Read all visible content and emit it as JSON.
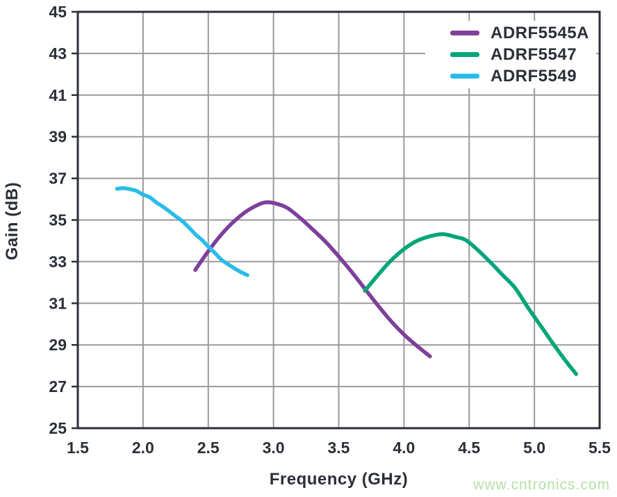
{
  "watermark": {
    "text": "www.cntronics.com",
    "color": "#b5dfa8"
  },
  "chart_data": {
    "type": "line",
    "title": "",
    "xlabel": "Frequency (GHz)",
    "ylabel": "Gain (dB)",
    "xlim": [
      1.5,
      5.5
    ],
    "ylim": [
      25,
      45
    ],
    "xticks": [
      1.5,
      2.0,
      2.5,
      3.0,
      3.5,
      4.0,
      4.5,
      5.0,
      5.5
    ],
    "xtick_labels": [
      "1.5",
      "2.0",
      "2.5",
      "3.0",
      "3.5",
      "4.0",
      "4.5",
      "5.0",
      "5.5"
    ],
    "yticks": [
      25,
      27,
      29,
      31,
      33,
      35,
      37,
      39,
      41,
      43,
      45
    ],
    "ytick_labels": [
      "25",
      "27",
      "29",
      "31",
      "33",
      "35",
      "37",
      "39",
      "41",
      "43",
      "45"
    ],
    "grid": true,
    "legend_position": "top-right",
    "colors": {
      "grid": "#9a9a9a",
      "frame": "#2b2f38",
      "text": "#2b2f38",
      "background": "#ffffff"
    },
    "series": [
      {
        "name": "ADRF5545A",
        "color": "#7e3f9b",
        "points": [
          [
            2.4,
            32.6
          ],
          [
            2.5,
            33.5
          ],
          [
            2.6,
            34.3
          ],
          [
            2.7,
            34.95
          ],
          [
            2.8,
            35.45
          ],
          [
            2.9,
            35.78
          ],
          [
            2.95,
            35.85
          ],
          [
            3.0,
            35.82
          ],
          [
            3.1,
            35.6
          ],
          [
            3.2,
            35.12
          ],
          [
            3.3,
            34.55
          ],
          [
            3.4,
            33.95
          ],
          [
            3.5,
            33.25
          ],
          [
            3.6,
            32.5
          ],
          [
            3.7,
            31.7
          ],
          [
            3.8,
            30.9
          ],
          [
            3.9,
            30.15
          ],
          [
            4.0,
            29.5
          ],
          [
            4.1,
            28.95
          ],
          [
            4.2,
            28.45
          ]
        ]
      },
      {
        "name": "ADRF5547",
        "color": "#00a678",
        "points": [
          [
            3.7,
            31.6
          ],
          [
            3.8,
            32.35
          ],
          [
            3.9,
            33.05
          ],
          [
            4.0,
            33.6
          ],
          [
            4.1,
            34.0
          ],
          [
            4.2,
            34.22
          ],
          [
            4.3,
            34.32
          ],
          [
            4.4,
            34.18
          ],
          [
            4.47,
            34.05
          ],
          [
            4.55,
            33.65
          ],
          [
            4.65,
            33.05
          ],
          [
            4.75,
            32.4
          ],
          [
            4.85,
            31.75
          ],
          [
            4.95,
            30.8
          ],
          [
            5.05,
            29.9
          ],
          [
            5.15,
            29.0
          ],
          [
            5.25,
            28.15
          ],
          [
            5.32,
            27.6
          ]
        ]
      },
      {
        "name": "ADRF5549",
        "color": "#2abce8",
        "points": [
          [
            1.8,
            36.5
          ],
          [
            1.85,
            36.53
          ],
          [
            1.9,
            36.48
          ],
          [
            1.95,
            36.4
          ],
          [
            2.0,
            36.22
          ],
          [
            2.05,
            36.1
          ],
          [
            2.1,
            35.85
          ],
          [
            2.15,
            35.65
          ],
          [
            2.2,
            35.42
          ],
          [
            2.25,
            35.18
          ],
          [
            2.3,
            34.95
          ],
          [
            2.35,
            34.65
          ],
          [
            2.4,
            34.32
          ],
          [
            2.45,
            34.05
          ],
          [
            2.5,
            33.72
          ],
          [
            2.55,
            33.42
          ],
          [
            2.6,
            33.1
          ],
          [
            2.65,
            32.88
          ],
          [
            2.7,
            32.68
          ],
          [
            2.75,
            32.5
          ],
          [
            2.8,
            32.35
          ]
        ]
      }
    ]
  }
}
